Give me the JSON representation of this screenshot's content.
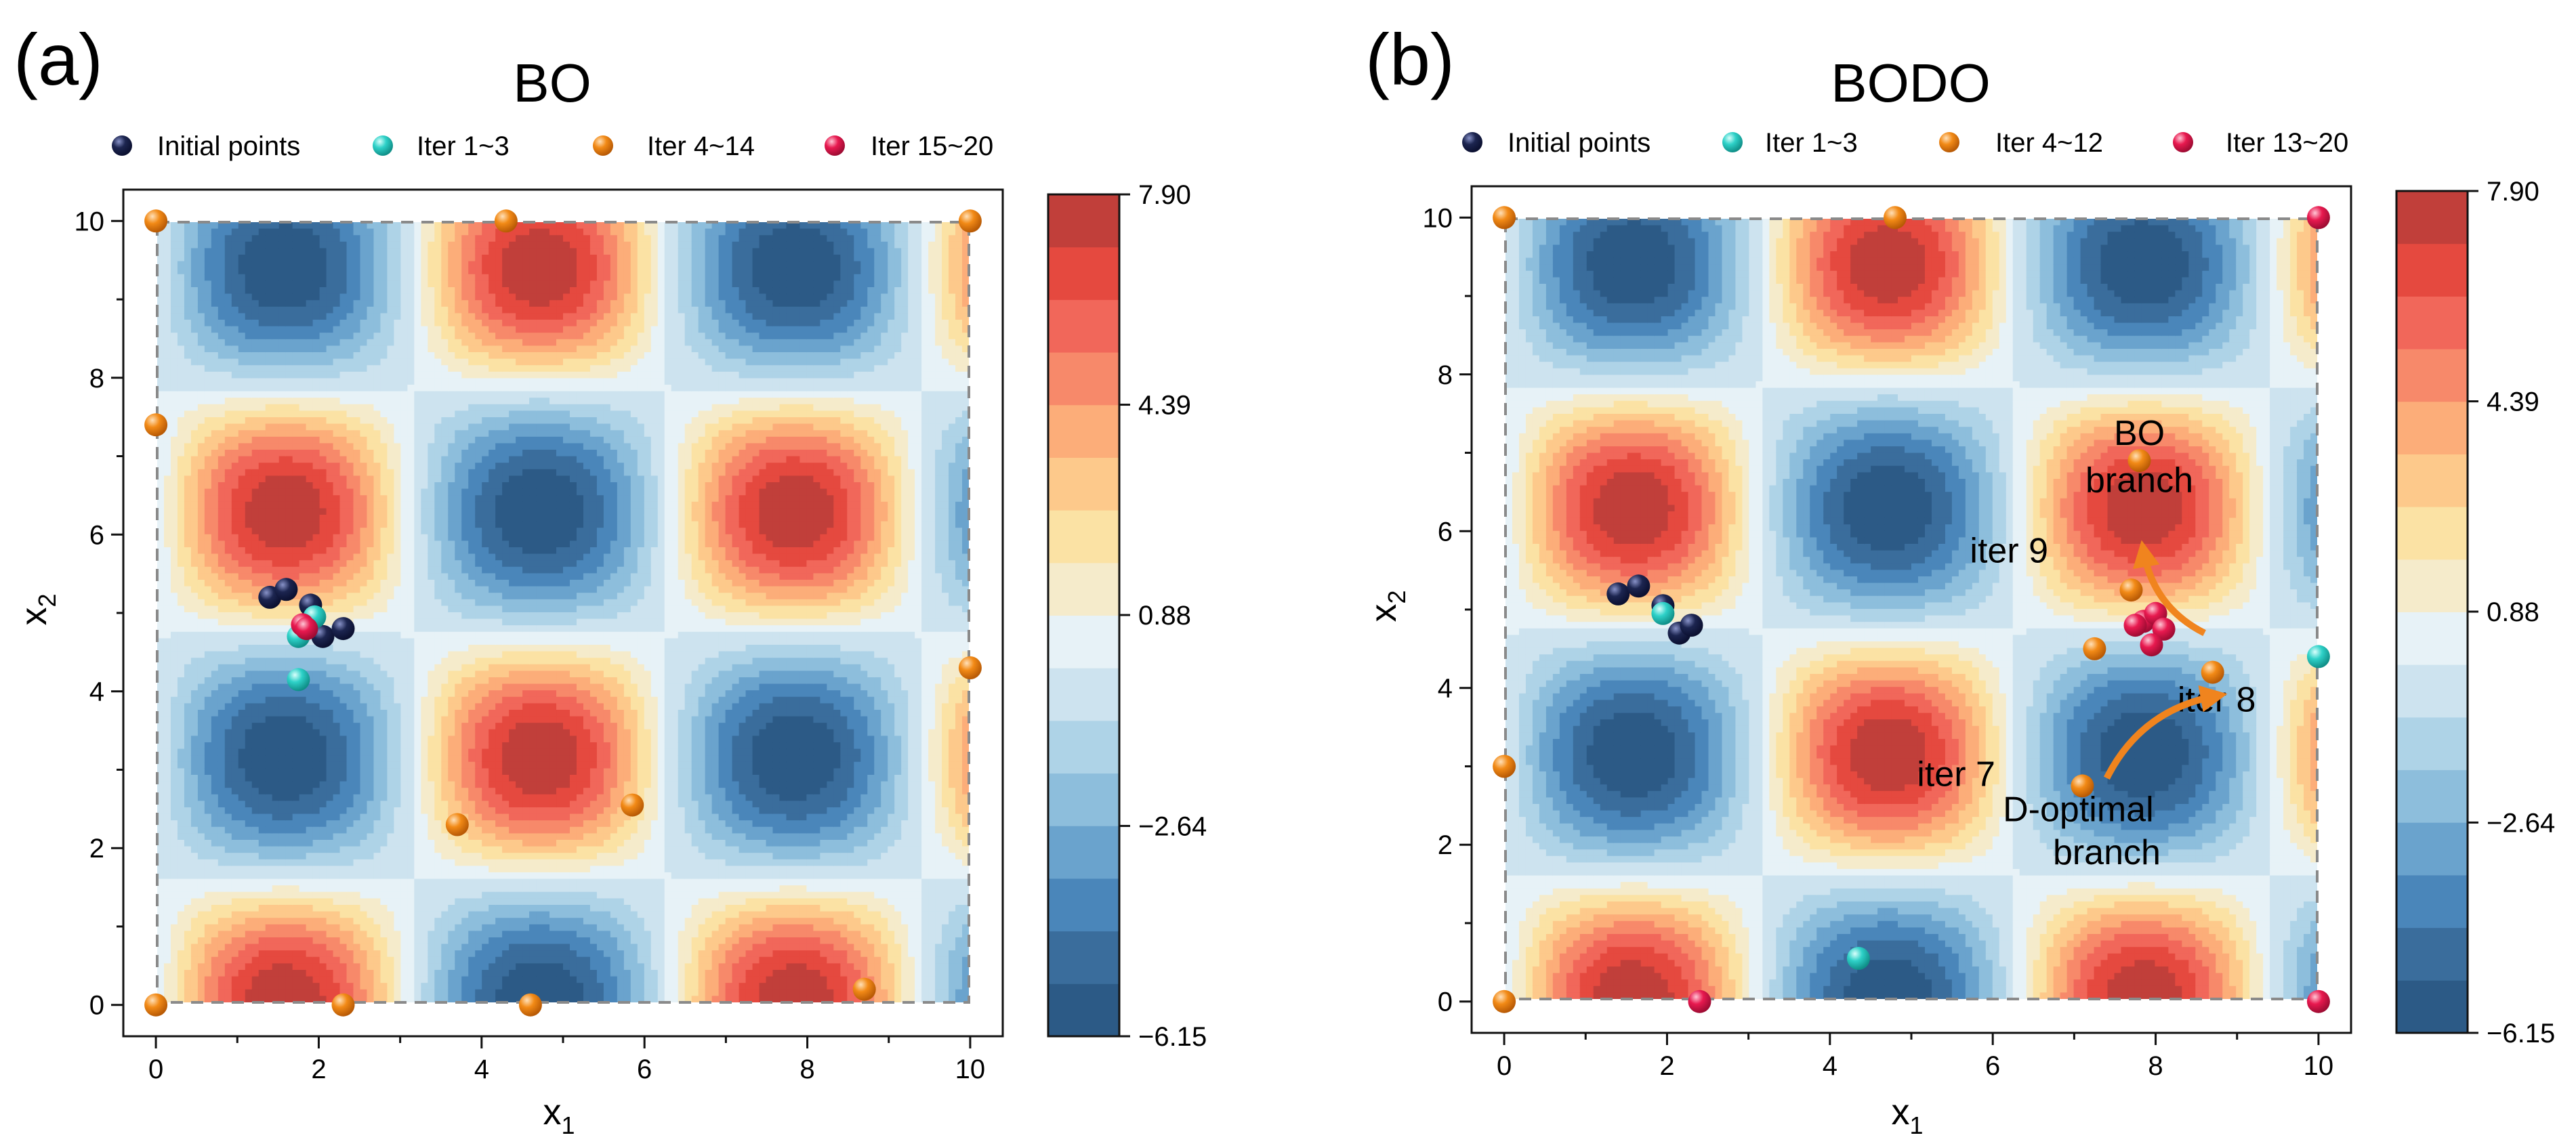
{
  "chart_data": {
    "type": "contour_scatter",
    "colorbar": {
      "min": -6.15,
      "max": 7.9,
      "tick_labels": [
        "7.90",
        "4.39",
        "0.88",
        "−2.64",
        "−6.15"
      ],
      "tick_values": [
        7.9,
        4.39,
        0.88,
        -2.64,
        -6.15
      ],
      "levels": 16,
      "colors": [
        "#2c5a86",
        "#3a6d9c",
        "#4a86ba",
        "#6aa3cd",
        "#8dbedc",
        "#aed3e7",
        "#cde3ef",
        "#e7f2f7",
        "#f5ebcb",
        "#fbe2a4",
        "#fdc98b",
        "#fcad79",
        "#f7896a",
        "#f1675a",
        "#e5493f",
        "#c13f3a"
      ]
    },
    "surface": "sin(x1) * cos(x2) scaled to [-6.15, 7.90]",
    "colors": {
      "initial": "#1c2550",
      "iter_a": "#2ed1c8",
      "iter_b": "#f28a16",
      "iter_c": "#e8194f",
      "arrow": "#f0841e",
      "frame": "#8a8a8a"
    },
    "panels": [
      {
        "panel_label": "(a)",
        "title": "BO",
        "legend": [
          "Initial points",
          "Iter 1~3",
          "Iter 4~14",
          "Iter 15~20"
        ],
        "xlabel": "x",
        "xlabel_sub": "1",
        "ylabel": "x",
        "ylabel_sub": "2",
        "xlim": [
          -0.4,
          10.4
        ],
        "ylim": [
          -0.4,
          10.4
        ],
        "xticks": [
          "0",
          "2",
          "4",
          "6",
          "8",
          "10"
        ],
        "yticks": [
          "0",
          "2",
          "4",
          "6",
          "8",
          "10"
        ],
        "points": [
          {
            "group": "initial",
            "x": 1.4,
            "y": 5.2
          },
          {
            "group": "initial",
            "x": 1.6,
            "y": 5.3
          },
          {
            "group": "initial",
            "x": 1.9,
            "y": 5.1
          },
          {
            "group": "initial",
            "x": 2.05,
            "y": 4.7
          },
          {
            "group": "initial",
            "x": 2.3,
            "y": 4.8
          },
          {
            "group": "iter_a",
            "x": 1.75,
            "y": 4.7
          },
          {
            "group": "iter_a",
            "x": 1.95,
            "y": 4.95
          },
          {
            "group": "iter_a",
            "x": 1.75,
            "y": 4.15
          },
          {
            "group": "iter_b",
            "x": 0.0,
            "y": 10.0
          },
          {
            "group": "iter_b",
            "x": 4.3,
            "y": 10.0
          },
          {
            "group": "iter_b",
            "x": 10.0,
            "y": 10.0
          },
          {
            "group": "iter_b",
            "x": 0.0,
            "y": 7.4
          },
          {
            "group": "iter_b",
            "x": 10.0,
            "y": 4.3
          },
          {
            "group": "iter_b",
            "x": 3.7,
            "y": 2.3
          },
          {
            "group": "iter_b",
            "x": 5.85,
            "y": 2.55
          },
          {
            "group": "iter_b",
            "x": 0.0,
            "y": 0.0
          },
          {
            "group": "iter_b",
            "x": 2.3,
            "y": 0.0
          },
          {
            "group": "iter_b",
            "x": 4.6,
            "y": 0.0
          },
          {
            "group": "iter_b",
            "x": 8.7,
            "y": 0.2
          },
          {
            "group": "iter_c",
            "x": 1.8,
            "y": 4.85
          },
          {
            "group": "iter_c",
            "x": 1.85,
            "y": 4.8
          }
        ],
        "annotations": []
      },
      {
        "panel_label": "(b)",
        "title": "BODO",
        "legend": [
          "Initial points",
          "Iter 1~3",
          "Iter 4~12",
          "Iter 13~20"
        ],
        "xlabel": "x",
        "xlabel_sub": "1",
        "ylabel": "x",
        "ylabel_sub": "2",
        "xlim": [
          -0.4,
          10.4
        ],
        "ylim": [
          -0.4,
          10.4
        ],
        "xticks": [
          "0",
          "2",
          "4",
          "6",
          "8",
          "10"
        ],
        "yticks": [
          "0",
          "2",
          "4",
          "6",
          "8",
          "10"
        ],
        "points": [
          {
            "group": "initial",
            "x": 1.4,
            "y": 5.2
          },
          {
            "group": "initial",
            "x": 1.65,
            "y": 5.3
          },
          {
            "group": "initial",
            "x": 1.95,
            "y": 5.05
          },
          {
            "group": "initial",
            "x": 2.15,
            "y": 4.7
          },
          {
            "group": "initial",
            "x": 2.3,
            "y": 4.8
          },
          {
            "group": "iter_a",
            "x": 1.95,
            "y": 4.95
          },
          {
            "group": "iter_a",
            "x": 10.0,
            "y": 4.4
          },
          {
            "group": "iter_a",
            "x": 4.35,
            "y": 0.55
          },
          {
            "group": "iter_b",
            "x": 0.0,
            "y": 10.0
          },
          {
            "group": "iter_b",
            "x": 4.8,
            "y": 10.0
          },
          {
            "group": "iter_b",
            "x": 7.8,
            "y": 6.9
          },
          {
            "group": "iter_b",
            "x": 7.7,
            "y": 5.25
          },
          {
            "group": "iter_b",
            "x": 7.25,
            "y": 4.5
          },
          {
            "group": "iter_b",
            "x": 8.7,
            "y": 4.2
          },
          {
            "group": "iter_b",
            "x": 7.1,
            "y": 2.75
          },
          {
            "group": "iter_b",
            "x": 0.0,
            "y": 3.0
          },
          {
            "group": "iter_b",
            "x": 0.0,
            "y": 0.0
          },
          {
            "group": "iter_c",
            "x": 10.0,
            "y": 10.0
          },
          {
            "group": "iter_c",
            "x": 10.0,
            "y": 0.0
          },
          {
            "group": "iter_c",
            "x": 2.4,
            "y": 0.0
          },
          {
            "group": "iter_c",
            "x": 7.85,
            "y": 4.85
          },
          {
            "group": "iter_c",
            "x": 8.0,
            "y": 4.95
          },
          {
            "group": "iter_c",
            "x": 8.1,
            "y": 4.75
          },
          {
            "group": "iter_c",
            "x": 7.95,
            "y": 4.55
          },
          {
            "group": "iter_c",
            "x": 7.75,
            "y": 4.8
          }
        ],
        "annotations": [
          {
            "text": "BO",
            "x": 7.8,
            "y": 7.1
          },
          {
            "text": "branch",
            "x": 7.8,
            "y": 6.5
          },
          {
            "text": "iter 9",
            "x": 6.2,
            "y": 5.6
          },
          {
            "text": "iter 8",
            "x": 8.75,
            "y": 3.7
          },
          {
            "text": "iter 7",
            "x": 5.55,
            "y": 2.75
          },
          {
            "text": "D-optimal",
            "x": 7.05,
            "y": 2.3
          },
          {
            "text": "branch",
            "x": 7.4,
            "y": 1.75
          }
        ],
        "arrows": [
          {
            "name": "arrow-iter8-to-iter9",
            "from": [
              8.6,
              4.7
            ],
            "to": [
              7.85,
              5.75
            ]
          },
          {
            "name": "arrow-iter7-to-iter8",
            "from": [
              7.4,
              2.85
            ],
            "to": [
              8.75,
              3.9
            ]
          }
        ]
      }
    ]
  }
}
